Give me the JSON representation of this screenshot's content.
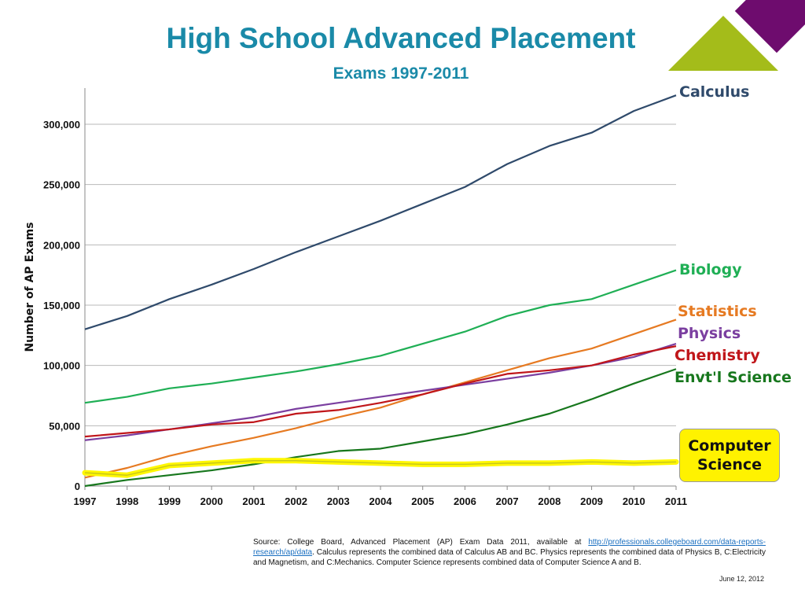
{
  "slide": {
    "title": "High School Advanced Placement",
    "subtitle": "Exams 1997-2011",
    "source_prefix": "Source: College Board, Advanced Placement (AP) Exam Data 2011, available at ",
    "source_link": "http://professionals.collegeboard.com/data-reports-research/ap/data",
    "source_suffix": ". Calculus represents the combined data of Calculus AB and BC. Physics represents the combined data of Physics B,  C:Electricity and Magnetism, and C:Mechanics. Computer Science represents combined data of Computer Science A and B.",
    "date": "June 12, 2012",
    "colors": {
      "title": "#1a8aa8",
      "deco_green": "#a4bc1a",
      "deco_purple": "#6e0c6e"
    }
  },
  "chart_data": {
    "type": "line",
    "x": [
      1997,
      1998,
      1999,
      2000,
      2001,
      2002,
      2003,
      2004,
      2005,
      2006,
      2007,
      2008,
      2009,
      2010,
      2011
    ],
    "ylabel": "Number of AP Exams",
    "xlabel": "",
    "ylim": [
      0,
      330000
    ],
    "xlim": [
      1997,
      2011
    ],
    "yticks": [
      0,
      50000,
      100000,
      150000,
      200000,
      250000,
      300000
    ],
    "ytick_labels": [
      "0",
      "50,000",
      "100,000",
      "150,000",
      "200,000",
      "250,000",
      "300,000"
    ],
    "xtick_labels": [
      "1997",
      "1998",
      "1999",
      "2000",
      "2001",
      "2002",
      "2003",
      "2004",
      "2005",
      "2006",
      "2007",
      "2008",
      "2009",
      "2010",
      "2011"
    ],
    "grid": "horizontal",
    "legend": "direct labels at right end of lines",
    "series": [
      {
        "name": "Calculus",
        "color": "#2f4a6b",
        "values": [
          130000,
          141000,
          155000,
          167000,
          180000,
          194000,
          207000,
          220000,
          234000,
          248000,
          267000,
          282000,
          293000,
          311000,
          324000
        ]
      },
      {
        "name": "Biology",
        "color": "#1faf55",
        "values": [
          69000,
          74000,
          81000,
          85000,
          90000,
          95000,
          101000,
          108000,
          118000,
          128000,
          141000,
          150000,
          155000,
          167000,
          179000
        ]
      },
      {
        "name": "Statistics",
        "color": "#e67a22",
        "values": [
          7000,
          15000,
          25000,
          33000,
          40000,
          48000,
          57000,
          65000,
          76000,
          86000,
          96000,
          106000,
          114000,
          126000,
          138000
        ]
      },
      {
        "name": "Physics",
        "color": "#7b3fa0",
        "values": [
          38000,
          42000,
          47000,
          52000,
          57000,
          64000,
          69000,
          74000,
          79000,
          84000,
          89000,
          94000,
          100000,
          107000,
          118000
        ]
      },
      {
        "name": "Chemistry",
        "color": "#c0161a",
        "values": [
          41000,
          44000,
          47000,
          51000,
          53000,
          60000,
          63000,
          69000,
          76000,
          85000,
          93000,
          96000,
          100000,
          109000,
          116000
        ]
      },
      {
        "name": "Envt'l Science",
        "color": "#17771d",
        "values": [
          0,
          5000,
          9000,
          13000,
          18000,
          24000,
          29000,
          31000,
          37000,
          43000,
          51000,
          60000,
          72000,
          85000,
          97000
        ]
      },
      {
        "name": "Computer Science",
        "color": "#c8c81a",
        "highlight": "#fff700",
        "values": [
          11000,
          9000,
          17000,
          19000,
          21000,
          21000,
          20000,
          19000,
          18000,
          18000,
          19000,
          19000,
          20000,
          19000,
          20000
        ]
      }
    ]
  }
}
